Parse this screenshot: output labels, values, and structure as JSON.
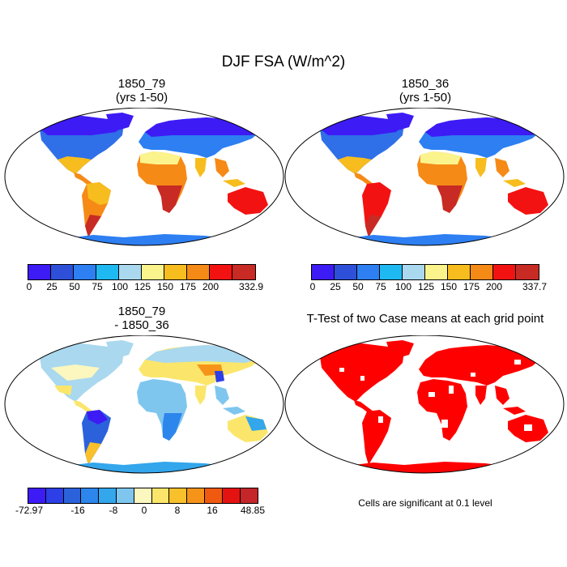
{
  "figure": {
    "title": "DJF FSA (W/m^2)",
    "colors": {
      "ocean": "#ffffff",
      "outline": "#000000",
      "sig": "#ff0000"
    }
  },
  "panels": {
    "p1": {
      "title": "1850_79\n(yrs 1-50)"
    },
    "p2": {
      "title": "1850_36\n(yrs 1-50)"
    },
    "p3": {
      "title": "1850_79\n- 1850_36"
    },
    "p4": {
      "title": "T-Test of two Case means at each grid point"
    }
  },
  "colorbars": {
    "cb1": {
      "colors": [
        "#3d1bf5",
        "#2e4fd8",
        "#2d7ff2",
        "#1fb9f1",
        "#a9d8ef",
        "#fbf48c",
        "#f7bd1e",
        "#f58a17",
        "#f31212",
        "#c82a24"
      ],
      "labels": [
        "0",
        "25",
        "50",
        "75",
        "100",
        "125",
        "150",
        "175",
        "200",
        "332.9"
      ]
    },
    "cb2": {
      "colors": [
        "#3d1bf5",
        "#2e4fd8",
        "#2d7ff2",
        "#1fb9f1",
        "#a9d8ef",
        "#fbf48c",
        "#f7bd1e",
        "#f58a17",
        "#f31212",
        "#c82a24"
      ],
      "labels": [
        "0",
        "25",
        "50",
        "75",
        "100",
        "125",
        "150",
        "175",
        "200",
        "337.7"
      ]
    },
    "cb3": {
      "colors": [
        "#3d1bf5",
        "#2d3fe6",
        "#2b62dc",
        "#2d86ec",
        "#33a6ec",
        "#7ec6ee",
        "#fbf7bf",
        "#fbe66b",
        "#f8c02a",
        "#f69419",
        "#f05a10",
        "#e51212",
        "#c4262a"
      ],
      "labels": [
        "-72.97",
        "-16",
        "-8",
        "0",
        "8",
        "16",
        "48.85"
      ]
    }
  },
  "footnote": "Cells are significant at 0.1 level"
}
